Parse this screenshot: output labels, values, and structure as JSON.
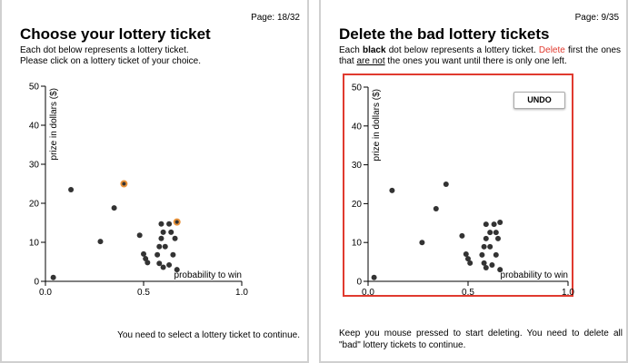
{
  "panels": [
    {
      "page": "Page: 18/32",
      "title": "Choose your lottery ticket",
      "description": [
        "Each dot below represents a lottery ticket.",
        "Please click on a lottery ticket of your choice."
      ],
      "footer": "You need to select a lottery ticket to continue.",
      "chart": {
        "type": "scatter",
        "xlabel": "probability to win",
        "ylabel": "prize in dollars ($)",
        "x": [
          0.04,
          0.13,
          0.35,
          0.28,
          0.4,
          0.48,
          0.5,
          0.51,
          0.52,
          0.59,
          0.63,
          0.67,
          0.6,
          0.64,
          0.59,
          0.66,
          0.58,
          0.61,
          0.57,
          0.65,
          0.58,
          0.63,
          0.6,
          0.67
        ],
        "values": [
          1,
          23.5,
          18.8,
          10.2,
          25,
          11.8,
          7,
          5.8,
          4.8,
          14.7,
          14.7,
          15.2,
          12.6,
          12.6,
          11,
          11,
          8.9,
          8.9,
          6.8,
          6.8,
          4.6,
          4.2,
          3.6,
          3
        ],
        "color": "#333333",
        "highlighted": [
          4,
          11
        ],
        "highlight_color": "#e8923a",
        "xlim": [
          0,
          1
        ],
        "xticks": [
          {
            "value": 0,
            "label": "0.0"
          },
          0.5,
          {
            "value": 1,
            "label": "1.0"
          }
        ],
        "ylim": [
          0,
          50
        ],
        "yticks": [
          0,
          10,
          20,
          30,
          40,
          50
        ]
      }
    },
    {
      "page": "Page: 9/35",
      "title": "Delete the bad lottery tickets",
      "description": [
        "Each ",
        "black",
        " dot below represents a lottery ticket. ",
        "Delete",
        " first the ones that ",
        "are not",
        " the ones you want until there is only one left."
      ],
      "footer": "Keep you mouse pressed to start deleting. You need to delete all \"bad\" lottery tickets to continue.",
      "button": "UNDO",
      "chart": {
        "type": "scatter",
        "xlabel": "probability to win",
        "ylabel": "prize in dollars ($)",
        "x": [
          0.03,
          0.12,
          0.34,
          0.27,
          0.39,
          0.47,
          0.49,
          0.5,
          0.51,
          0.59,
          0.63,
          0.66,
          0.61,
          0.64,
          0.59,
          0.65,
          0.58,
          0.61,
          0.57,
          0.64,
          0.58,
          0.62,
          0.59,
          0.66
        ],
        "values": [
          1,
          23.4,
          18.7,
          10,
          25,
          11.7,
          7,
          5.8,
          4.7,
          14.7,
          14.7,
          15.2,
          12.6,
          12.6,
          11,
          11,
          8.9,
          8.9,
          6.8,
          6.8,
          4.7,
          4.2,
          3.5,
          3
        ],
        "color": "#333333",
        "frame_color": "#e03a2f",
        "xlim": [
          0,
          1
        ],
        "xticks": [
          {
            "value": 0,
            "label": "0.0"
          },
          0.5,
          {
            "value": 1,
            "label": "1.0"
          }
        ],
        "ylim": [
          0,
          50
        ],
        "yticks": [
          0,
          10,
          20,
          30,
          40,
          50
        ]
      }
    }
  ]
}
